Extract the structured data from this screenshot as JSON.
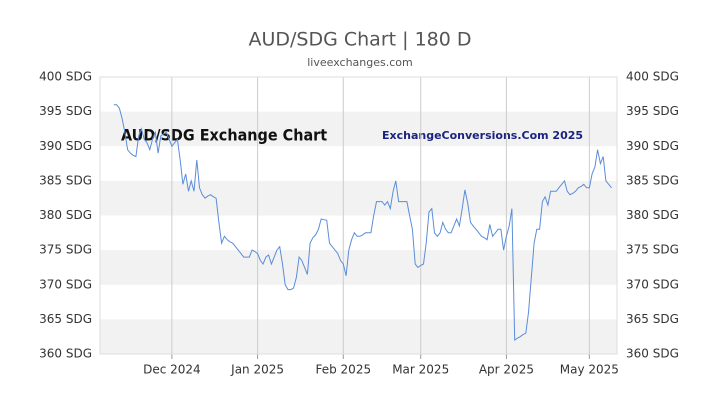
{
  "chart_data": {
    "type": "line",
    "title": "AUD/SDG Chart | 180 D",
    "subtitle": "liveexchanges.com",
    "annotations": [
      "AUD/SDG Exchange Chart",
      "ExchangeConversions.Com 2025"
    ],
    "grid": true,
    "series": [
      {
        "name": "AUD/SDG",
        "color": "#5b8dd9",
        "values": [
          396,
          396,
          395.5,
          394,
          392,
          389.5,
          389,
          388.7,
          388.5,
          391.5,
          392.5,
          391,
          390.5,
          389.5,
          391,
          392,
          389,
          391.5,
          391.8,
          392,
          391,
          390,
          390.5,
          391,
          388,
          384.5,
          386,
          383.5,
          385,
          383.5,
          388,
          384,
          383,
          382.5,
          382.8,
          383,
          382.7,
          382.5,
          379,
          376,
          377,
          376.5,
          376.2,
          376,
          375.5,
          375,
          374.5,
          374,
          374,
          374,
          375,
          374.8,
          374.5,
          373.5,
          373,
          374,
          374.3,
          373,
          374,
          375,
          375.5,
          373,
          370,
          369.3,
          369.3,
          369.5,
          371,
          374,
          373.5,
          372.5,
          371.5,
          376,
          376.8,
          377.2,
          378,
          379.5,
          379.4,
          379.3,
          376,
          375.5,
          375,
          374.5,
          373.5,
          373,
          371.3,
          375,
          376.5,
          377.5,
          377,
          377,
          377.2,
          377.5,
          377.5,
          377.5,
          380,
          382,
          382,
          382,
          381.5,
          382,
          381,
          383.5,
          385,
          382,
          382,
          382,
          382,
          380,
          378,
          373,
          372.5,
          372.8,
          373,
          376,
          380.5,
          381,
          377.5,
          377,
          377.5,
          379,
          378,
          377.5,
          377.5,
          378.5,
          379.5,
          378.5,
          381,
          383.7,
          381.8,
          379,
          378.5,
          378,
          377.5,
          377,
          376.8,
          376.5,
          378.7,
          377,
          377.5,
          378,
          378,
          375,
          377,
          378.5,
          381,
          362,
          362.3,
          362.5,
          362.8,
          363,
          366,
          371,
          376,
          378,
          378,
          382,
          382.7,
          381.5,
          383.5,
          383.5,
          383.5,
          384,
          384.5,
          385,
          383.5,
          383,
          383.2,
          383.5,
          384,
          384.2,
          384.5,
          384,
          384,
          386,
          387,
          389.5,
          387.5,
          388.5,
          385,
          384.5,
          384
        ]
      }
    ],
    "xlim": [
      -5,
      182
    ],
    "xticks": [
      {
        "value": 21,
        "label": "Dec 2024"
      },
      {
        "value": 52,
        "label": "Jan 2025"
      },
      {
        "value": 83,
        "label": "Feb 2025"
      },
      {
        "value": 111,
        "label": "Mar 2025"
      },
      {
        "value": 142,
        "label": "Apr 2025"
      },
      {
        "value": 172,
        "label": "May 2025"
      }
    ],
    "ylim": [
      360,
      400
    ],
    "yticks": [
      {
        "value": 360,
        "label": "360 SDG"
      },
      {
        "value": 365,
        "label": "365 SDG"
      },
      {
        "value": 370,
        "label": "370 SDG"
      },
      {
        "value": 375,
        "label": "375 SDG"
      },
      {
        "value": 380,
        "label": "380 SDG"
      },
      {
        "value": 385,
        "label": "385 SDG"
      },
      {
        "value": 390,
        "label": "390 SDG"
      },
      {
        "value": 395,
        "label": "395 SDG"
      },
      {
        "value": 400,
        "label": "400 SDG"
      }
    ]
  }
}
